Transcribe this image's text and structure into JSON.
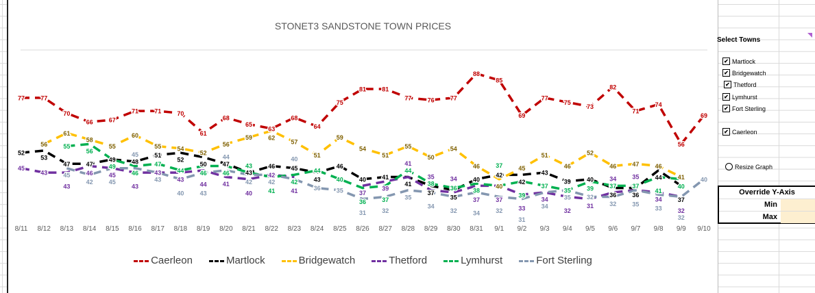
{
  "chart_data": {
    "type": "line",
    "title": "STONET3 SANDSTONE TOWN PRICES",
    "categories": [
      "8/11",
      "8/12",
      "8/13",
      "8/14",
      "8/15",
      "8/16",
      "8/17",
      "8/18",
      "8/19",
      "8/20",
      "8/21",
      "8/22",
      "8/23",
      "8/24",
      "8/25",
      "8/26",
      "8/27",
      "8/28",
      "8/29",
      "8/30",
      "8/31",
      "9/1",
      "9/2",
      "9/3",
      "9/4",
      "9/5",
      "9/6",
      "9/7",
      "9/8",
      "9/9",
      "9/10"
    ],
    "ylim": [
      20,
      100
    ],
    "legend_position": "bottom",
    "series": [
      {
        "name": "Caerleon",
        "color": "#c00000",
        "label_color": "#c00000",
        "values": [
          77,
          77,
          70,
          66,
          67,
          71,
          71,
          70,
          61,
          68,
          65,
          63,
          68,
          64,
          75,
          81,
          81,
          77,
          76,
          77,
          88,
          85,
          69,
          77,
          75,
          73,
          82,
          71,
          74,
          56,
          69
        ]
      },
      {
        "name": "Martlock",
        "color": "#000000",
        "label_color": "#000000",
        "values": [
          52,
          53,
          47,
          47,
          49,
          48,
          51,
          52,
          50,
          47,
          43,
          46,
          45,
          43,
          46,
          40,
          41,
          41,
          37,
          35,
          40,
          42,
          42,
          43,
          39,
          40,
          36,
          36,
          44,
          37,
          null
        ]
      },
      {
        "name": "Bridgewatch",
        "color": "#ffc000",
        "label_color": "#7f6000",
        "values": [
          null,
          56,
          61,
          58,
          55,
          60,
          55,
          54,
          52,
          56,
          59,
          62,
          57,
          51,
          59,
          54,
          51,
          55,
          50,
          54,
          46,
          40,
          45,
          51,
          46,
          52,
          46,
          47,
          46,
          41,
          null
        ]
      },
      {
        "name": "Thetford",
        "color": "#7030a0",
        "label_color": "#7030a0",
        "values": [
          45,
          43,
          43,
          46,
          45,
          43,
          43,
          43,
          44,
          41,
          40,
          42,
          41,
          null,
          null,
          37,
          39,
          41,
          35,
          34,
          37,
          37,
          33,
          34,
          32,
          31,
          34,
          35,
          34,
          32,
          null
        ]
      },
      {
        "name": "Lymhurst",
        "color": "#00b050",
        "label_color": "#00b050",
        "values": [
          null,
          null,
          55,
          56,
          49,
          46,
          47,
          44,
          46,
          46,
          43,
          41,
          42,
          44,
          40,
          36,
          37,
          44,
          38,
          36,
          38,
          37,
          39,
          37,
          35,
          39,
          37,
          37,
          41,
          40,
          null
        ]
      },
      {
        "name": "Fort Sterling",
        "color": "#8497b0",
        "label_color": "#8497b0",
        "values": [
          null,
          null,
          45,
          42,
          45,
          45,
          43,
          40,
          43,
          44,
          42,
          42,
          40,
          36,
          35,
          31,
          32,
          35,
          34,
          32,
          34,
          32,
          31,
          34,
          35,
          32,
          32,
          35,
          33,
          32,
          40
        ]
      }
    ]
  },
  "panel": {
    "select_towns": "Select Towns",
    "towns": [
      "Martlock",
      "Bridgewatch",
      "Thetford",
      "Lymhurst",
      "Fort Sterling",
      "Caerleon"
    ],
    "resize_graph": "Resize Graph",
    "override_title": "Override Y-Axis",
    "min_label": "Min",
    "max_label": "Max",
    "min_value": "",
    "max_value": ""
  }
}
